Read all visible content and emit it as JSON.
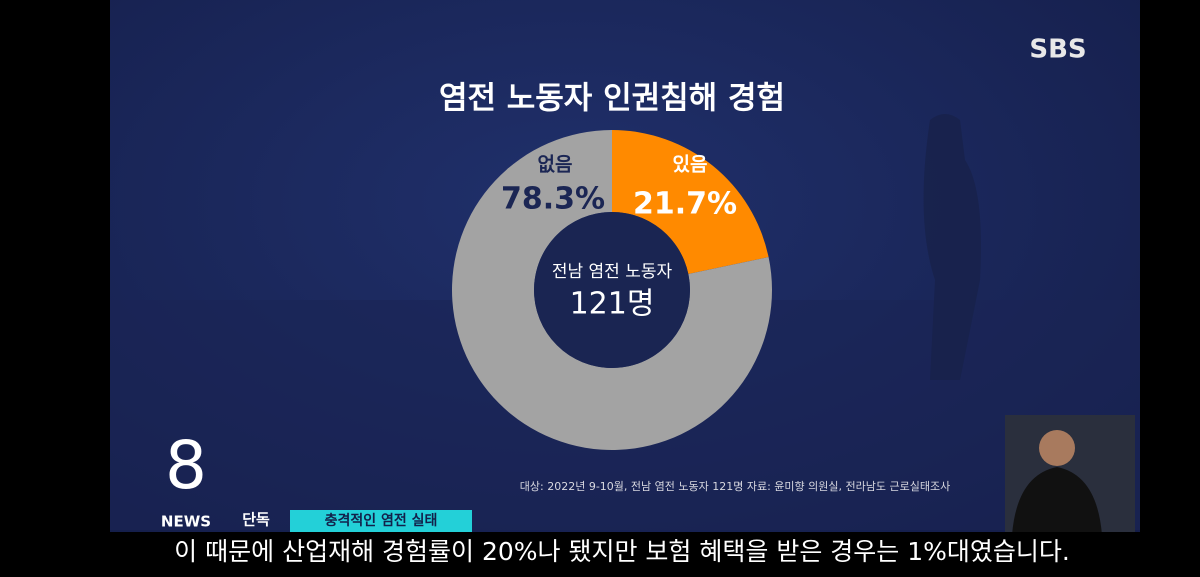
{
  "chart_data": {
    "type": "pie",
    "title": "염전 노동자 인권침해 경험",
    "categories": [
      "있음",
      "없음"
    ],
    "values": [
      21.7,
      78.3
    ],
    "value_labels": [
      "21.7%",
      "78.3%"
    ],
    "colors": [
      "#ff8a00",
      "#a3a3a3"
    ],
    "center_label": "전남 염전 노동자",
    "center_value": "121명",
    "source": "대상: 2022년 9-10월, 전남 염전 노동자 121명 자료: 윤미향 의원실, 전라남도 근로실태조사"
  },
  "broadcast": {
    "logo": "SBS",
    "program_number": "8",
    "program_name": "NEWS",
    "tag": "단독",
    "headline": "충격적인 염전 실태",
    "caption": "이 때문에 산업재해 경험률이 20%나 됐지만 보험 혜택을 받은 경우는 1%대였습니다."
  }
}
